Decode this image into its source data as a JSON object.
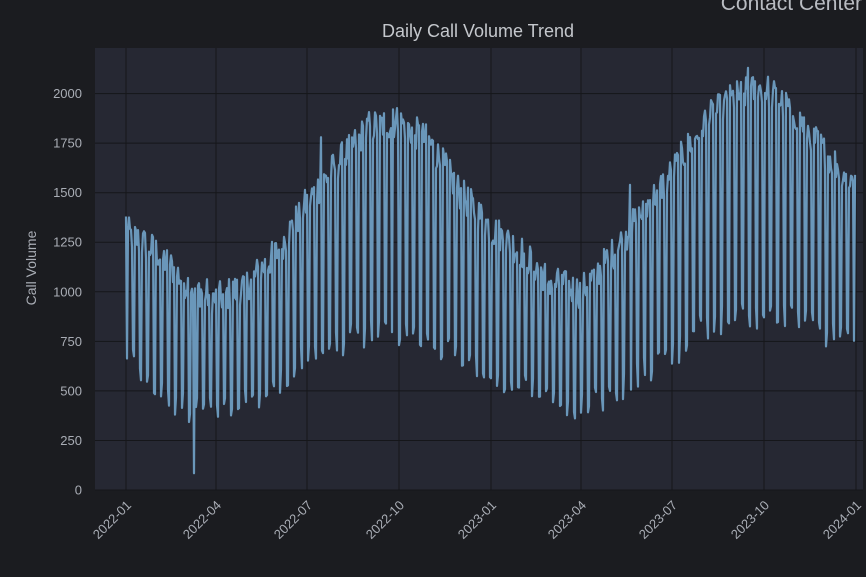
{
  "dashboard": {
    "title": "Contact Center"
  },
  "colors": {
    "background": "#1b1c20",
    "plot_background": "#262833",
    "grid": "#15161a",
    "line": "#6a97ba",
    "text": "#a9adb5"
  },
  "chart_data": {
    "type": "line",
    "title": "Daily Call Volume Trend",
    "xlabel": "",
    "ylabel": "Call Volume",
    "grid": true,
    "x_range": [
      "2021-12-01",
      "2024-01-08"
    ],
    "ylim": [
      0,
      2230
    ],
    "y_ticks": [
      0,
      250,
      500,
      750,
      1000,
      1250,
      1500,
      1750,
      2000
    ],
    "x_ticks": [
      "2022-01",
      "2022-04",
      "2022-07",
      "2022-10",
      "2023-01",
      "2023-04",
      "2023-07",
      "2023-10",
      "2024-01"
    ],
    "series": [
      {
        "color": "#6a97ba",
        "start_date": "2022-01-01",
        "frequency": "daily",
        "weekly_pattern": "weekday peaks, weekend troughs",
        "trend_points": [
          {
            "date": "2022-01-01",
            "peak": 1300,
            "trough": 700
          },
          {
            "date": "2022-02-01",
            "peak": 1200,
            "trough": 480
          },
          {
            "date": "2022-03-01",
            "peak": 1050,
            "trough": 420
          },
          {
            "date": "2022-04-01",
            "peak": 960,
            "trough": 400
          },
          {
            "date": "2022-05-01",
            "peak": 1030,
            "trough": 430
          },
          {
            "date": "2022-06-01",
            "peak": 1200,
            "trough": 530
          },
          {
            "date": "2022-07-01",
            "peak": 1450,
            "trough": 680
          },
          {
            "date": "2022-08-01",
            "peak": 1650,
            "trough": 740
          },
          {
            "date": "2022-09-01",
            "peak": 1830,
            "trough": 800
          },
          {
            "date": "2022-10-01",
            "peak": 1860,
            "trough": 800
          },
          {
            "date": "2022-11-01",
            "peak": 1750,
            "trough": 760
          },
          {
            "date": "2022-12-01",
            "peak": 1500,
            "trough": 690
          },
          {
            "date": "2023-01-01",
            "peak": 1320,
            "trough": 600
          },
          {
            "date": "2023-02-01",
            "peak": 1200,
            "trough": 520
          },
          {
            "date": "2023-03-01",
            "peak": 1050,
            "trough": 450
          },
          {
            "date": "2023-04-01",
            "peak": 1000,
            "trough": 420
          },
          {
            "date": "2023-05-01",
            "peak": 1180,
            "trough": 490
          },
          {
            "date": "2023-06-01",
            "peak": 1400,
            "trough": 600
          },
          {
            "date": "2023-07-01",
            "peak": 1600,
            "trough": 680
          },
          {
            "date": "2023-08-01",
            "peak": 1850,
            "trough": 830
          },
          {
            "date": "2023-09-01",
            "peak": 1980,
            "trough": 880
          },
          {
            "date": "2023-10-01",
            "peak": 2030,
            "trough": 880
          },
          {
            "date": "2023-11-01",
            "peak": 1900,
            "trough": 860
          },
          {
            "date": "2023-12-01",
            "peak": 1700,
            "trough": 800
          },
          {
            "date": "2023-12-31",
            "peak": 1550,
            "trough": 780
          }
        ],
        "notable_points": [
          {
            "date": "2022-01-01",
            "value": 1380
          },
          {
            "date": "2022-03-10",
            "value": 85
          },
          {
            "date": "2022-07-15",
            "value": 1780
          },
          {
            "date": "2022-09-25",
            "value": 1920
          },
          {
            "date": "2023-05-20",
            "value": 1540
          },
          {
            "date": "2023-09-15",
            "value": 2130
          },
          {
            "date": "2023-12-31",
            "value": 1590
          }
        ]
      }
    ]
  }
}
